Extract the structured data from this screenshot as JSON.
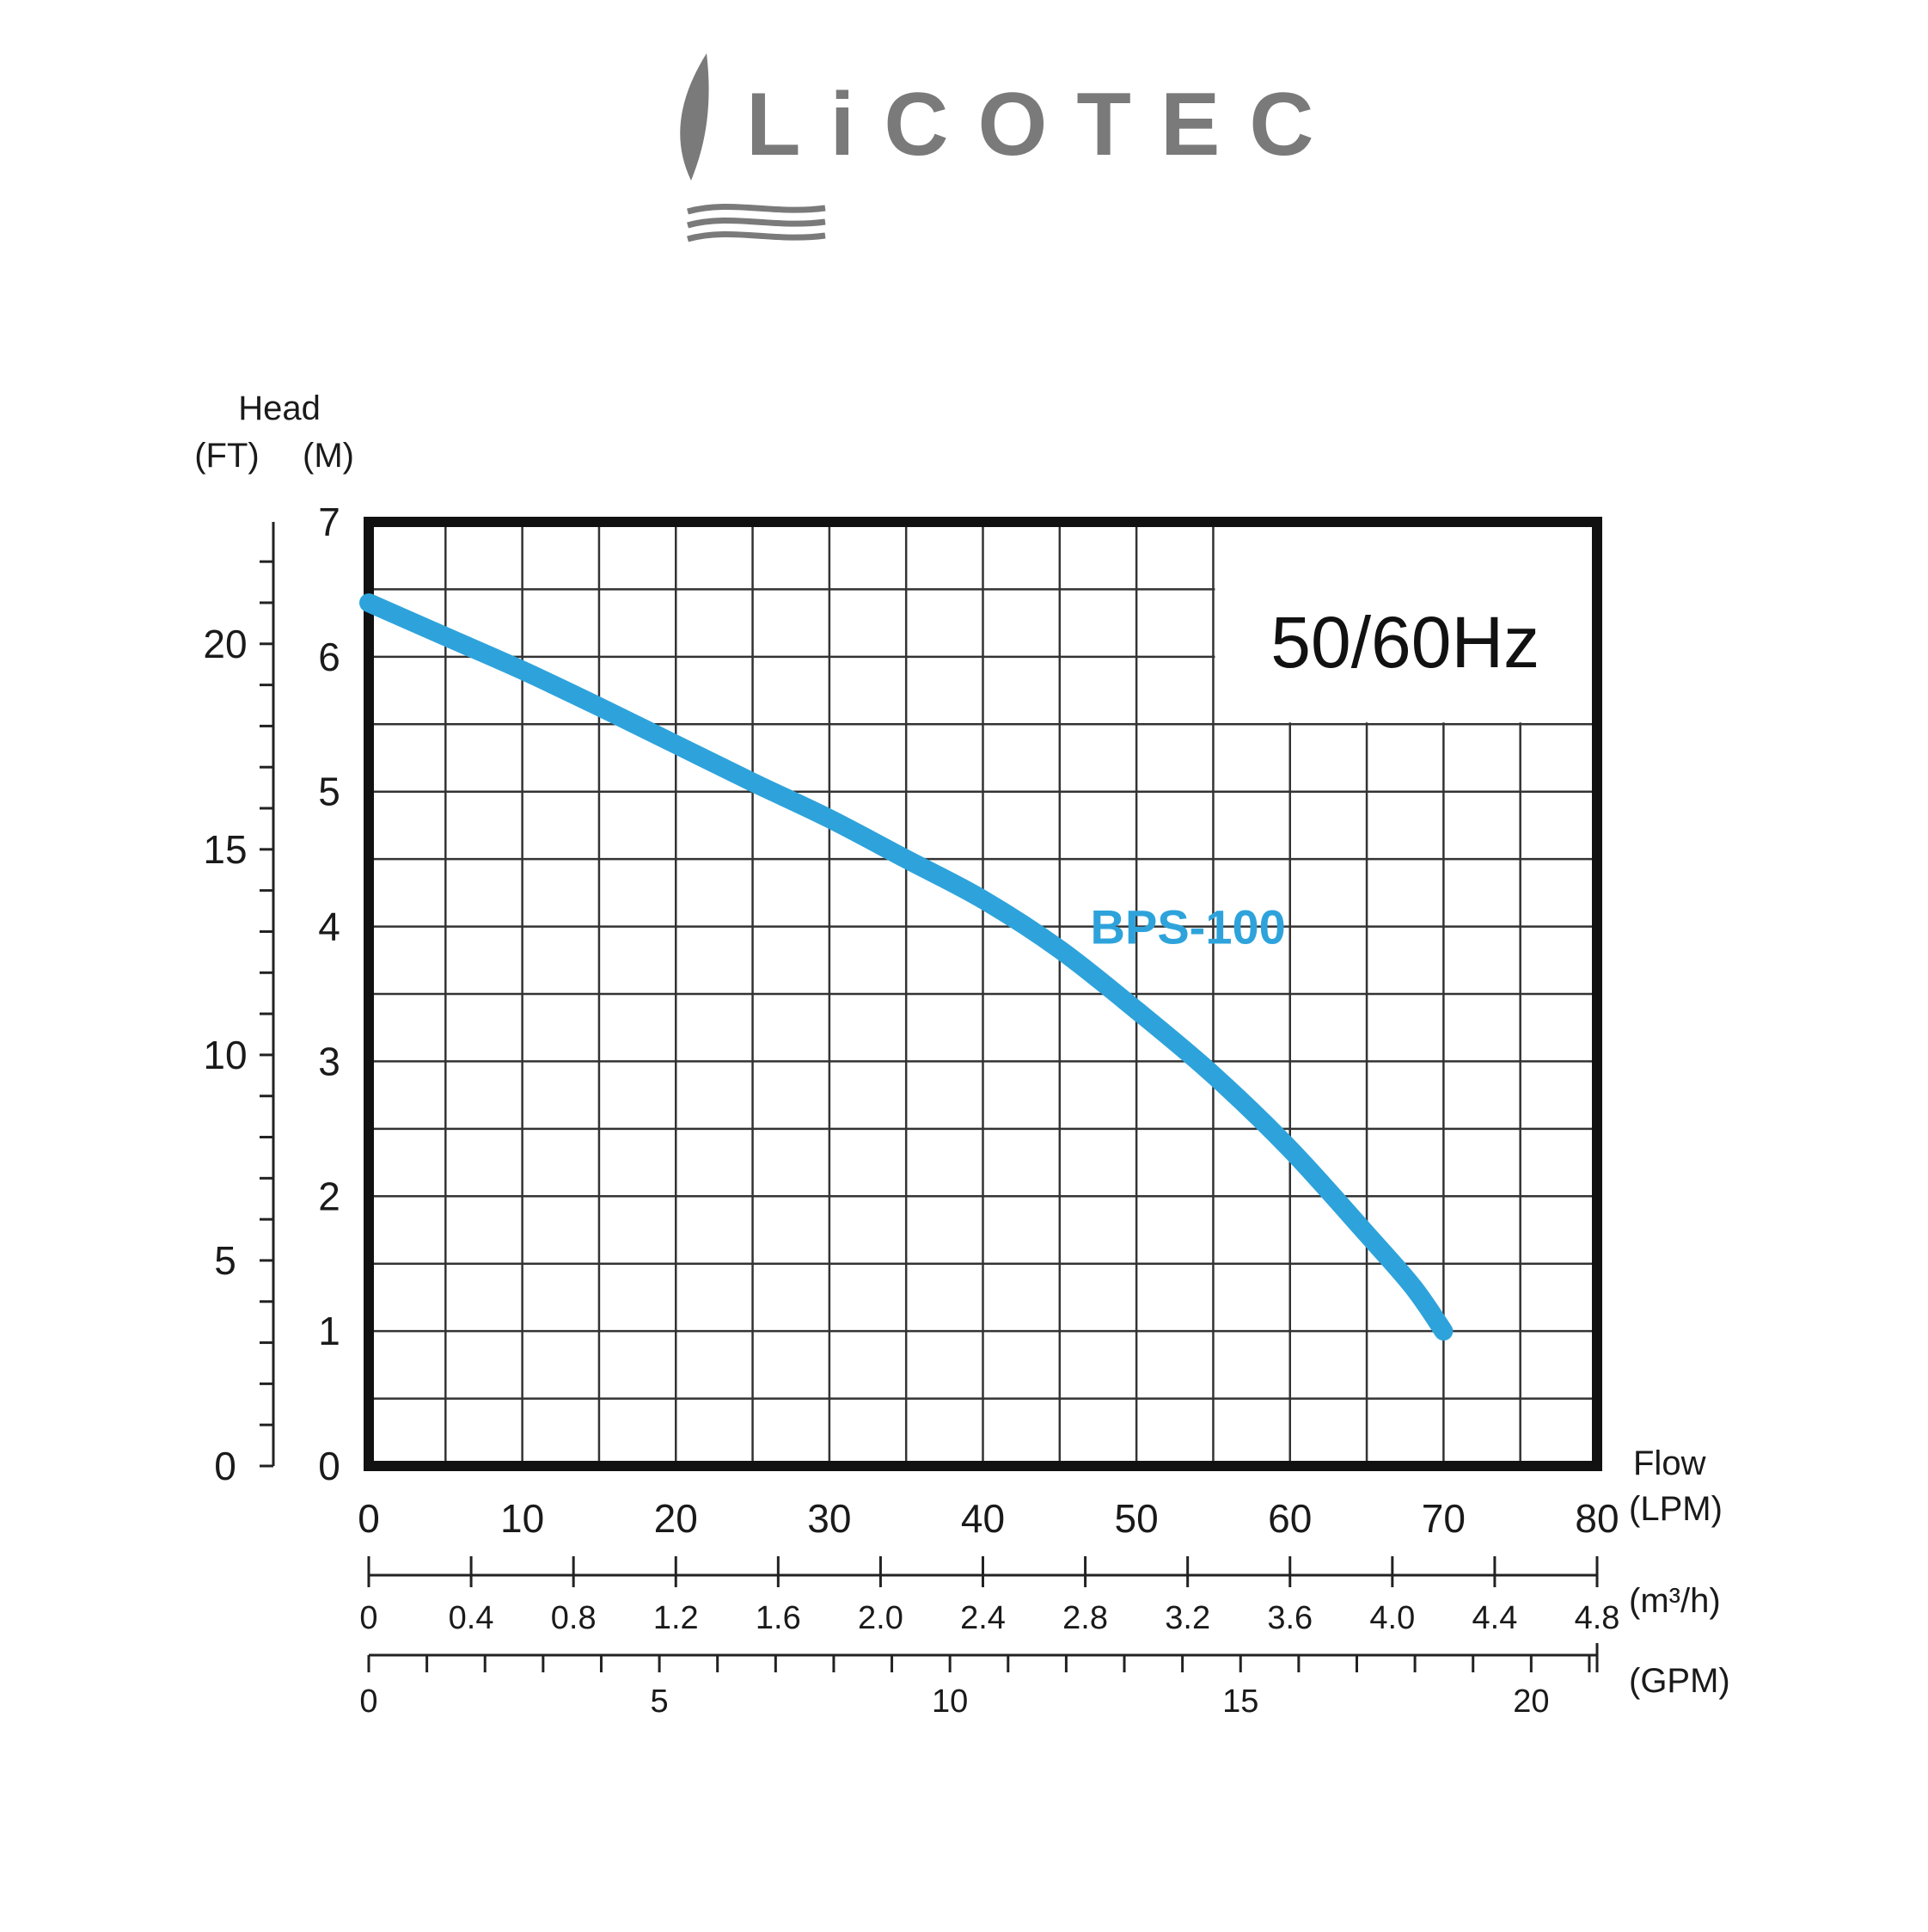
{
  "brand": {
    "name": "LiCOTEC",
    "logo_color": "#7a7a7a"
  },
  "chart_data": {
    "type": "line",
    "frequency_label": "50/60Hz",
    "y_axis_title": "Head",
    "y_left_unit": "(FT)",
    "y_right_unit": "(M)",
    "x_axis_title": "Flow",
    "x_primary_unit": "(LPM)",
    "x_secondary_unit": "(m³/h)",
    "x_tertiary_unit": "(GPM)",
    "xlim": [
      0,
      80
    ],
    "ylim": [
      0,
      7
    ],
    "x_ticks": [
      "0",
      "10",
      "20",
      "30",
      "40",
      "50",
      "60",
      "70",
      "80"
    ],
    "y_ticks": [
      "0",
      "1",
      "2",
      "3",
      "4",
      "5",
      "6",
      "7"
    ],
    "ft_ticks": [
      "0",
      "5",
      "10",
      "15",
      "20"
    ],
    "m3h_ticks": [
      "0",
      "0.4",
      "0.8",
      "1.2",
      "1.6",
      "2.0",
      "2.4",
      "2.8",
      "3.2",
      "3.6",
      "4.0",
      "4.4",
      "4.8"
    ],
    "gpm_ticks": [
      "0",
      "5",
      "10",
      "15",
      "20"
    ],
    "grid": true,
    "series": [
      {
        "name": "BPS-100",
        "color": "#2ea3db",
        "x": [
          0,
          5,
          10,
          15,
          20,
          25,
          30,
          35,
          40,
          45,
          50,
          55,
          60,
          65,
          68,
          70
        ],
        "y": [
          6.4,
          6.15,
          5.9,
          5.63,
          5.35,
          5.07,
          4.8,
          4.5,
          4.2,
          3.83,
          3.38,
          2.9,
          2.35,
          1.72,
          1.33,
          1.0
        ]
      }
    ]
  }
}
